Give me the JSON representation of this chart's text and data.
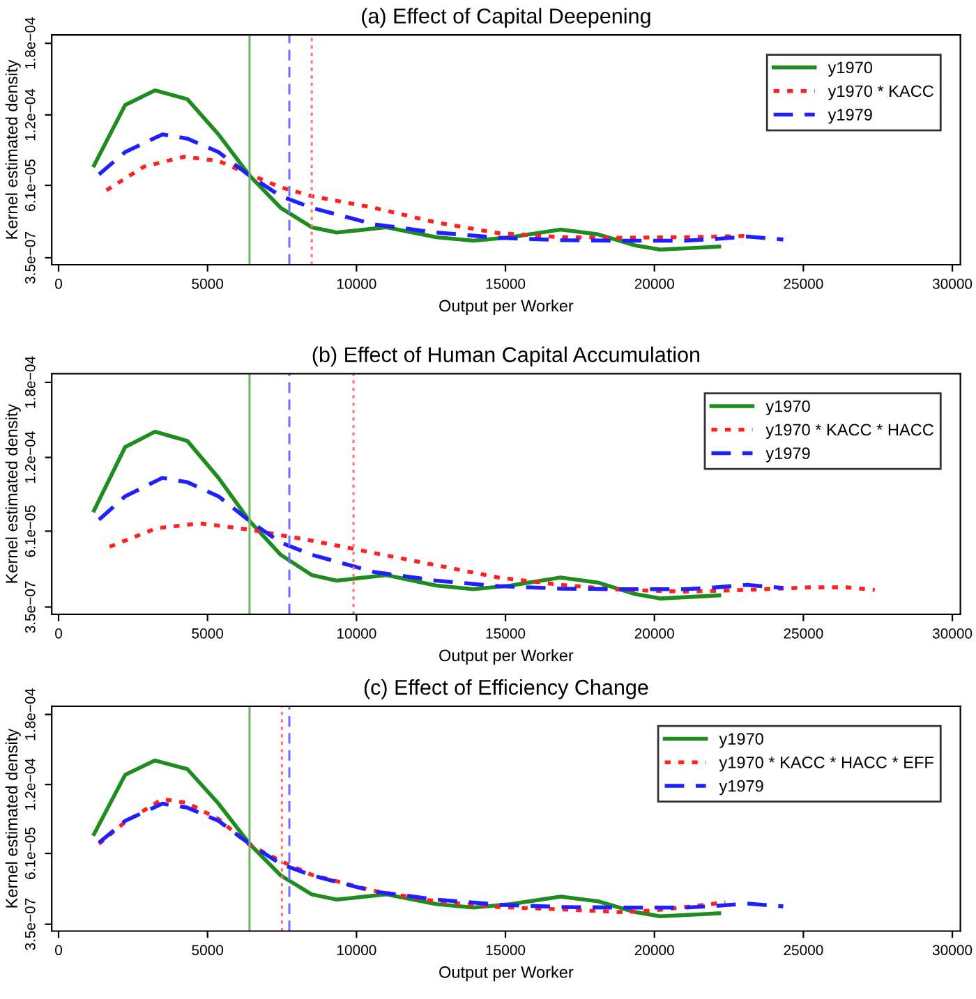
{
  "chart_data": [
    {
      "type": "line",
      "title": "(a) Effect of Capital Deepening",
      "xlabel": "Output per Worker",
      "ylabel": "Kernel estimated density",
      "xlim": [
        -230,
        30270
      ],
      "xticks": [
        0,
        5000,
        10000,
        15000,
        20000,
        25000,
        30000
      ],
      "ylim": [
        -5.5e-06,
        0.000187
      ],
      "yticks": [
        {
          "value": 3.5e-07,
          "label": "3.5e−07"
        },
        {
          "value": 6.1e-05,
          "label": "6.1e−05"
        },
        {
          "value": 0.00012,
          "label": "1.2e−04"
        },
        {
          "value": 0.00018,
          "label": "1.8e−04"
        }
      ],
      "legend": "top right",
      "grid": false,
      "series": [
        {
          "name": "y1970",
          "color": "#1e8c1e",
          "line_style": "solid",
          "x": [
            1190,
            2234,
            3236,
            4322,
            5366,
            6410,
            7454,
            8498,
            9333,
            11004,
            12674,
            13927,
            15180,
            16850,
            18103,
            19356,
            20191,
            22175
          ],
          "values": [
            7.76e-05,
            0.0001283,
            0.0001406,
            0.0001332,
            0.0001037,
            6.92e-05,
            4.22e-05,
            2.59e-05,
            2.15e-05,
            2.59e-05,
            1.76e-05,
            1.46e-05,
            1.76e-05,
            2.4e-05,
            2e-05,
            1.07e-05,
            7.2e-06,
            9.7e-06
          ]
        },
        {
          "name": "y1970 * KACC",
          "color": "#ff2020",
          "line_style": "dotted",
          "x": [
            1608,
            2861,
            4218,
            5366,
            6410,
            7454,
            8498,
            10586,
            12674,
            14762,
            16850,
            18938,
            21026,
            23114
          ],
          "values": [
            5.69e-05,
            7.66e-05,
            8.5e-05,
            8.15e-05,
            7.02e-05,
            5.94e-05,
            5.2e-05,
            4.22e-05,
            2.99e-05,
            2.1e-05,
            1.76e-05,
            1.71e-05,
            1.76e-05,
            1.86e-05
          ]
        },
        {
          "name": "y1979",
          "color": "#2020ff",
          "line_style": "dashed",
          "x": [
            1357,
            2234,
            3487,
            4322,
            5366,
            6410,
            7454,
            8498,
            10586,
            12674,
            14762,
            16850,
            18938,
            21026,
            22070,
            23114,
            24325
          ],
          "values": [
            7.02e-05,
            8.89e-05,
            0.0001037,
            0.0001002,
            8.89e-05,
            6.92e-05,
            5.2e-05,
            4.22e-05,
            2.84e-05,
            2.15e-05,
            1.71e-05,
            1.51e-05,
            1.46e-05,
            1.46e-05,
            1.61e-05,
            1.81e-05,
            1.56e-05
          ]
        }
      ],
      "ref_lines": [
        {
          "axis": "x",
          "value": 6410,
          "color": "#70b870",
          "line_style": "solid"
        },
        {
          "axis": "x",
          "value": 7746,
          "color": "#7070ff",
          "line_style": "dashed"
        },
        {
          "axis": "x",
          "value": 8498,
          "color": "#ff7070",
          "line_style": "dotted"
        }
      ]
    },
    {
      "type": "line",
      "title": "(b) Effect of Human Capital Accumulation",
      "xlabel": "Output per Worker",
      "ylabel": "Kernel estimated density",
      "xlim": [
        -230,
        30270
      ],
      "xticks": [
        0,
        5000,
        10000,
        15000,
        20000,
        25000,
        30000
      ],
      "ylim": [
        -5.5e-06,
        0.000187
      ],
      "yticks": [
        {
          "value": 3.5e-07,
          "label": "3.5e−07"
        },
        {
          "value": 6.1e-05,
          "label": "6.1e−05"
        },
        {
          "value": 0.00012,
          "label": "1.2e−04"
        },
        {
          "value": 0.00018,
          "label": "1.8e−04"
        }
      ],
      "legend": "top right",
      "grid": false,
      "series": [
        {
          "name": "y1970",
          "color": "#1e8c1e",
          "line_style": "solid",
          "x": [
            1190,
            2234,
            3236,
            4322,
            5366,
            6410,
            7454,
            8498,
            9333,
            11004,
            12674,
            13927,
            15180,
            16850,
            18103,
            19356,
            20191,
            22175
          ],
          "values": [
            7.76e-05,
            0.0001283,
            0.0001406,
            0.0001332,
            0.0001037,
            6.92e-05,
            4.22e-05,
            2.59e-05,
            2.15e-05,
            2.59e-05,
            1.76e-05,
            1.46e-05,
            1.76e-05,
            2.4e-05,
            2e-05,
            1.07e-05,
            7.2e-06,
            9.7e-06
          ]
        },
        {
          "name": "y1970 * KACC * HACC",
          "color": "#ff2020",
          "line_style": "dotted",
          "x": [
            1712,
            3278,
            4740,
            6410,
            8498,
            10586,
            12674,
            14762,
            16850,
            18938,
            21026,
            23114,
            25202,
            26455,
            27395
          ],
          "values": [
            4.86e-05,
            6.33e-05,
            6.73e-05,
            6.23e-05,
            5.35e-05,
            4.36e-05,
            3.38e-05,
            2.4e-05,
            1.81e-05,
            1.41e-05,
            1.27e-05,
            1.41e-05,
            1.61e-05,
            1.61e-05,
            1.41e-05
          ]
        },
        {
          "name": "y1979",
          "color": "#2020ff",
          "line_style": "dashed",
          "x": [
            1357,
            2234,
            3487,
            4322,
            5366,
            6410,
            7454,
            8498,
            10586,
            12674,
            14762,
            16850,
            18938,
            21026,
            22070,
            23114,
            24325
          ],
          "values": [
            7.02e-05,
            8.89e-05,
            0.0001037,
            0.0001002,
            8.89e-05,
            6.92e-05,
            5.2e-05,
            4.22e-05,
            2.84e-05,
            2.15e-05,
            1.71e-05,
            1.51e-05,
            1.46e-05,
            1.46e-05,
            1.61e-05,
            1.81e-05,
            1.56e-05
          ]
        }
      ],
      "ref_lines": [
        {
          "axis": "x",
          "value": 6410,
          "color": "#70b870",
          "line_style": "solid"
        },
        {
          "axis": "x",
          "value": 7746,
          "color": "#7070ff",
          "line_style": "dashed"
        },
        {
          "axis": "x",
          "value": 9900,
          "color": "#ff7070",
          "line_style": "dotted"
        }
      ]
    },
    {
      "type": "line",
      "title": "(c) Effect of Efficiency Change",
      "xlabel": "Output per Worker",
      "ylabel": "Kernel estimated density",
      "xlim": [
        -230,
        30270
      ],
      "xticks": [
        0,
        5000,
        10000,
        15000,
        20000,
        25000,
        30000
      ],
      "ylim": [
        -5.5e-06,
        0.000187
      ],
      "yticks": [
        {
          "value": 3.5e-07,
          "label": "3.5e−07"
        },
        {
          "value": 6.1e-05,
          "label": "6.1e−05"
        },
        {
          "value": 0.00012,
          "label": "1.2e−04"
        },
        {
          "value": 0.00018,
          "label": "1.8e−04"
        }
      ],
      "legend": "top right",
      "grid": false,
      "series": [
        {
          "name": "y1970",
          "color": "#1e8c1e",
          "line_style": "solid",
          "x": [
            1190,
            2234,
            3236,
            4322,
            5366,
            6410,
            7454,
            8498,
            9333,
            11004,
            12674,
            13927,
            15180,
            16850,
            18103,
            19356,
            20191,
            22175
          ],
          "values": [
            7.76e-05,
            0.0001283,
            0.0001406,
            0.0001332,
            0.0001037,
            6.92e-05,
            4.22e-05,
            2.59e-05,
            2.15e-05,
            2.59e-05,
            1.76e-05,
            1.46e-05,
            1.76e-05,
            2.4e-05,
            2e-05,
            1.07e-05,
            7.2e-06,
            9.7e-06
          ]
        },
        {
          "name": "y1970 * KACC * HACC * EFF",
          "color": "#ff2020",
          "line_style": "dotted",
          "x": [
            1357,
            2234,
            3487,
            4322,
            5366,
            6410,
            7454,
            8498,
            10586,
            12674,
            14762,
            16850,
            18938,
            19982,
            21026,
            22384
          ],
          "values": [
            6.92e-05,
            8.79e-05,
            0.0001076,
            0.0001042,
            9.04e-05,
            6.83e-05,
            5.45e-05,
            4.27e-05,
            2.89e-05,
            2e-05,
            1.51e-05,
            1.31e-05,
            1.07e-05,
            1.22e-05,
            1.51e-05,
            1.9e-05
          ]
        },
        {
          "name": "y1979",
          "color": "#2020ff",
          "line_style": "dashed",
          "x": [
            1357,
            2234,
            3487,
            4322,
            5366,
            6410,
            7454,
            8498,
            10586,
            12674,
            14762,
            16850,
            18938,
            21026,
            22070,
            23114,
            24325
          ],
          "values": [
            7.02e-05,
            8.89e-05,
            0.0001037,
            0.0001002,
            8.89e-05,
            6.92e-05,
            5.2e-05,
            4.22e-05,
            2.84e-05,
            2.15e-05,
            1.71e-05,
            1.51e-05,
            1.46e-05,
            1.46e-05,
            1.61e-05,
            1.81e-05,
            1.56e-05
          ]
        }
      ],
      "ref_lines": [
        {
          "axis": "x",
          "value": 6410,
          "color": "#70b870",
          "line_style": "solid"
        },
        {
          "axis": "x",
          "value": 7496,
          "color": "#ff7070",
          "line_style": "dotted"
        },
        {
          "axis": "x",
          "value": 7746,
          "color": "#7070ff",
          "line_style": "dashed"
        }
      ]
    }
  ]
}
